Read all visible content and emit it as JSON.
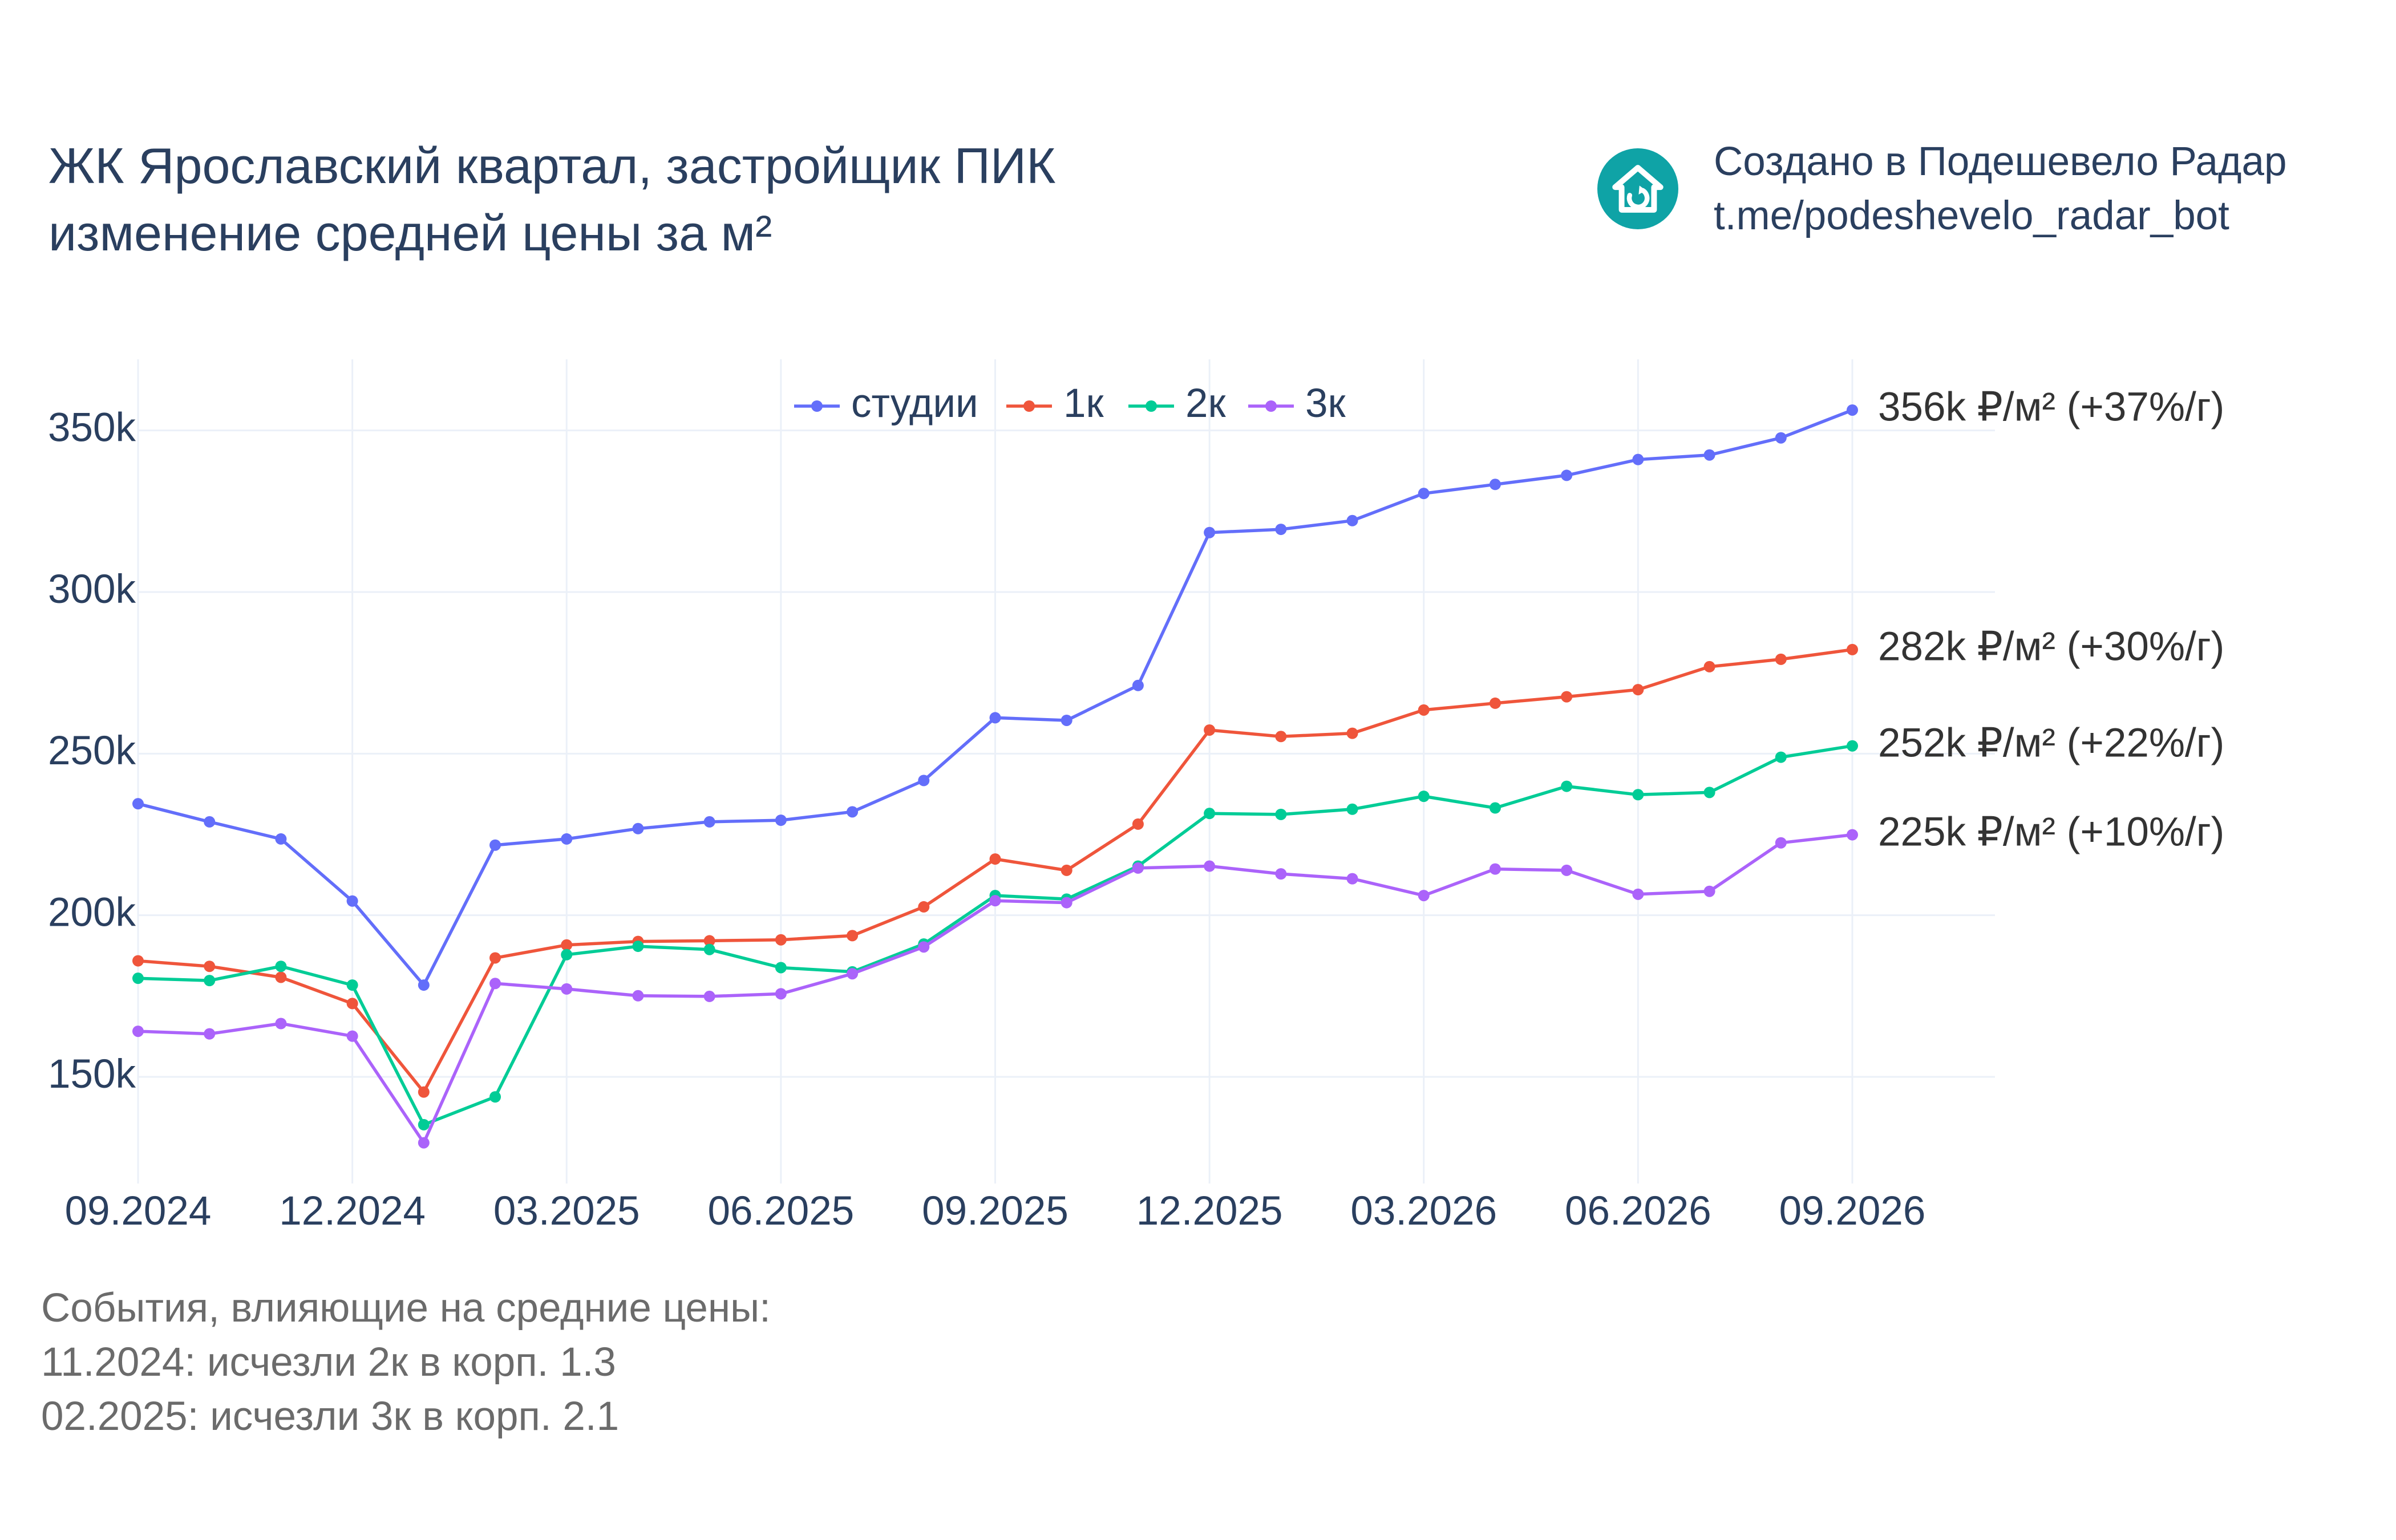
{
  "header": {
    "title_line1": "ЖК Ярославский квартал, застройщик ПИК",
    "title_line2": "изменение средней цены за м²"
  },
  "brand": {
    "line1": "Создано в Подешевело Радар",
    "line2": "t.me/podeshevelo_radar_bot",
    "icon": "house-icon",
    "color": "#0fa3a6"
  },
  "events": {
    "heading": "События, влияющие на средние цены:",
    "items": [
      "11.2024: исчезли 2к в корп. 1.3",
      "02.2025: исчезли 3к в корп. 2.1"
    ]
  },
  "chart_data": {
    "type": "line",
    "x": [
      "2024-09",
      "2024-10",
      "2024-11",
      "2024-12",
      "2025-01",
      "2025-02",
      "2025-03",
      "2025-04",
      "2025-05",
      "2025-06",
      "2025-07",
      "2025-08",
      "2025-09",
      "2025-10",
      "2025-11",
      "2025-12",
      "2026-01",
      "2026-02",
      "2026-03",
      "2026-04",
      "2026-05",
      "2026-06",
      "2026-07",
      "2026-08",
      "2026-09"
    ],
    "x_tick_labels": [
      "09.2024",
      "12.2024",
      "03.2025",
      "06.2025",
      "09.2025",
      "12.2025",
      "03.2026",
      "06.2026",
      "09.2026"
    ],
    "y_ticks": [
      150000,
      200000,
      250000,
      300000,
      350000
    ],
    "y_tick_labels": [
      "150k",
      "200k",
      "250k",
      "300k",
      "350k"
    ],
    "ylim": [
      117000,
      372000
    ],
    "grid": true,
    "legend_position": "top-center",
    "series": [
      {
        "name": "студии",
        "color": "#636efa",
        "values": [
          234500,
          228900,
          223600,
          204400,
          178400,
          221700,
          223600,
          226800,
          228900,
          229400,
          232000,
          241700,
          261100,
          260300,
          271100,
          318400,
          319400,
          322100,
          330500,
          333300,
          336100,
          341000,
          342400,
          347700,
          356300
        ],
        "end_label": "356k ₽/м² (+37%/г)"
      },
      {
        "name": "1к",
        "color": "#ef553b",
        "values": [
          185900,
          184200,
          180800,
          172700,
          145300,
          186800,
          190800,
          191900,
          192100,
          192400,
          193700,
          202600,
          217400,
          213900,
          228200,
          257300,
          255300,
          256300,
          263500,
          265600,
          267600,
          269800,
          276900,
          279200,
          282200
        ],
        "end_label": "282k ₽/м² (+30%/г)"
      },
      {
        "name": "2к",
        "color": "#00cc96",
        "values": [
          180500,
          179800,
          184200,
          178400,
          135200,
          143800,
          187800,
          190400,
          189400,
          183800,
          182500,
          191100,
          206100,
          205000,
          215200,
          231500,
          231200,
          232800,
          236800,
          233200,
          239900,
          237300,
          238000,
          248900,
          252400
        ],
        "end_label": "252k ₽/м² (+22%/г)"
      },
      {
        "name": "3к",
        "color": "#ab63fa",
        "values": [
          164100,
          163300,
          166500,
          162600,
          129600,
          178900,
          177200,
          175100,
          174900,
          175700,
          181900,
          190200,
          204500,
          203900,
          214600,
          215200,
          212800,
          211300,
          206100,
          214300,
          213900,
          206500,
          207400,
          222400,
          224900
        ],
        "end_label": "225k ₽/м² (+10%/г)"
      }
    ]
  }
}
